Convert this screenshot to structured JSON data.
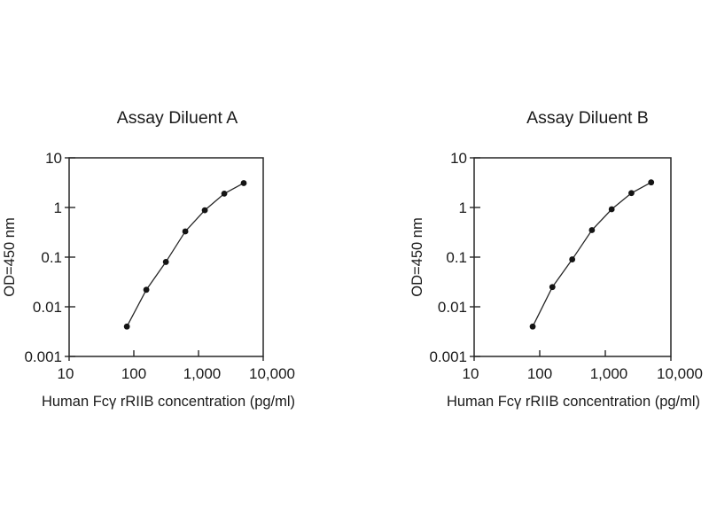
{
  "figure": {
    "background_color": "#ffffff",
    "text_color": "#1a1a1a",
    "line_color": "#262626",
    "marker_color": "#141414"
  },
  "chart_data": [
    {
      "type": "line",
      "title": "Assay Diluent A",
      "xlabel": "Human Fcγ rRIIB concentration (pg/ml)",
      "ylabel": "OD=450 nm",
      "x": [
        78.1,
        156,
        313,
        625,
        1250,
        2500,
        5000
      ],
      "y": [
        0.004,
        0.022,
        0.08,
        0.33,
        0.88,
        1.9,
        3.1
      ],
      "xlim": [
        10,
        10000
      ],
      "ylim": [
        0.001,
        10
      ],
      "x_scale": "log",
      "y_scale": "log",
      "x_ticks": [
        10,
        100,
        1000,
        10000
      ],
      "x_tick_labels": [
        "10",
        "100",
        "1,000",
        "10,000"
      ],
      "y_ticks": [
        10,
        1,
        0.1,
        0.01,
        0.001
      ],
      "y_tick_labels": [
        "10",
        "1",
        "0.1",
        "0.01",
        "0.001"
      ],
      "grid": false,
      "legend": false,
      "marker": "filled-circle"
    },
    {
      "type": "line",
      "title": "Assay Diluent B",
      "xlabel": "Human Fcγ rRIIB concentration (pg/ml)",
      "ylabel": "OD=450 nm",
      "x": [
        78.1,
        156,
        313,
        625,
        1250,
        2500,
        5000
      ],
      "y": [
        0.004,
        0.025,
        0.09,
        0.35,
        0.92,
        1.95,
        3.2
      ],
      "xlim": [
        10,
        10000
      ],
      "ylim": [
        0.001,
        10
      ],
      "x_scale": "log",
      "y_scale": "log",
      "x_ticks": [
        10,
        100,
        1000,
        10000
      ],
      "x_tick_labels": [
        "10",
        "100",
        "1,000",
        "10,000"
      ],
      "y_ticks": [
        10,
        1,
        0.1,
        0.01,
        0.001
      ],
      "y_tick_labels": [
        "10",
        "1",
        "0.1",
        "0.01",
        "0.001"
      ],
      "grid": false,
      "legend": false,
      "marker": "filled-circle"
    }
  ]
}
